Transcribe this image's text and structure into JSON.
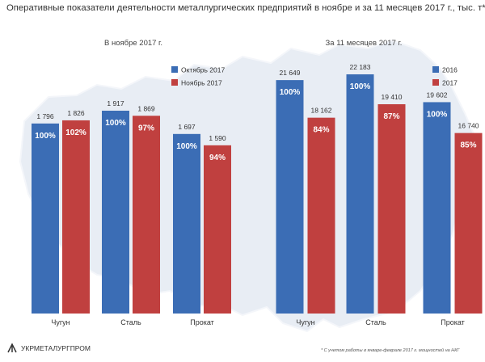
{
  "chart_data": {
    "type": "bar",
    "title": "Оперативные показатели деятельности металлургических предприятий в ноябре и за 11 месяцев 2017 г., тыс. т*",
    "panels": [
      {
        "subtitle": "В ноябре 2017 г.",
        "categories": [
          "Чугун",
          "Сталь",
          "Прокат"
        ],
        "series": [
          {
            "name": "Октябрь 2017",
            "values": [
              1796,
              1917,
              1697
            ],
            "pct_labels": [
              "100%",
              "100%",
              "100%"
            ],
            "value_labels": [
              "1 796",
              "1 917",
              "1 697"
            ],
            "color": "#3b6db5"
          },
          {
            "name": "Ноябрь 2017",
            "values": [
              1826,
              1869,
              1590
            ],
            "pct_labels": [
              "102%",
              "97%",
              "94%"
            ],
            "value_labels": [
              "1 826",
              "1 869",
              "1 590"
            ],
            "color": "#c0403f"
          }
        ],
        "ylim": [
          0,
          2100
        ]
      },
      {
        "subtitle": "За 11 месяцев 2017 г.",
        "categories": [
          "Чугун",
          "Сталь",
          "Прокат"
        ],
        "series": [
          {
            "name": "2016",
            "values": [
              21649,
              22183,
              19602
            ],
            "pct_labels": [
              "100%",
              "100%",
              "100%"
            ],
            "value_labels": [
              "21 649",
              "22 183",
              "19 602"
            ],
            "color": "#3b6db5"
          },
          {
            "name": "2017",
            "values": [
              18162,
              19410,
              16740
            ],
            "pct_labels": [
              "84%",
              "87%",
              "85%"
            ],
            "value_labels": [
              "18 162",
              "19 410",
              "16 740"
            ],
            "color": "#c0403f"
          }
        ],
        "ylim": [
          0,
          24300
        ]
      }
    ],
    "legend_position": "top-right of each panel",
    "grid": false
  },
  "footer": {
    "logo_text": "УКРМЕТАЛУРГПРОМ",
    "footnote": "* С учетом работы в январе-феврале 2017 г. мощностей на НКГ"
  }
}
